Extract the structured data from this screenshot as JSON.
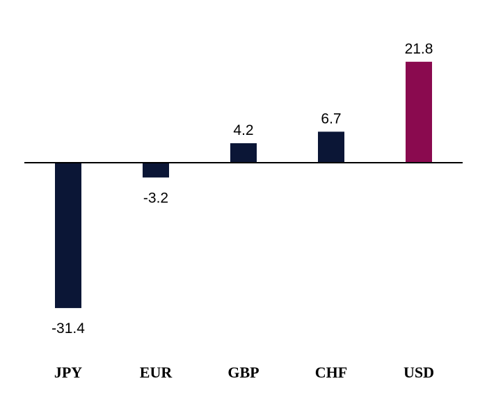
{
  "chart_data": {
    "type": "bar",
    "categories": [
      "JPY",
      "EUR",
      "GBP",
      "CHF",
      "USD"
    ],
    "values": [
      -31.4,
      -3.2,
      4.2,
      6.7,
      21.8
    ],
    "value_labels": [
      "-31.4",
      "-3.2",
      "4.2",
      "6.7",
      "21.8"
    ],
    "bar_colors": [
      "#0b1636",
      "#0b1636",
      "#0b1636",
      "#0b1636",
      "#8a0a4f"
    ],
    "title": "",
    "xlabel": "",
    "ylabel": "",
    "ylim": [
      -33,
      26
    ],
    "grid": false,
    "legend": "none",
    "zero_line": true,
    "zero_line_color": "#000000"
  }
}
